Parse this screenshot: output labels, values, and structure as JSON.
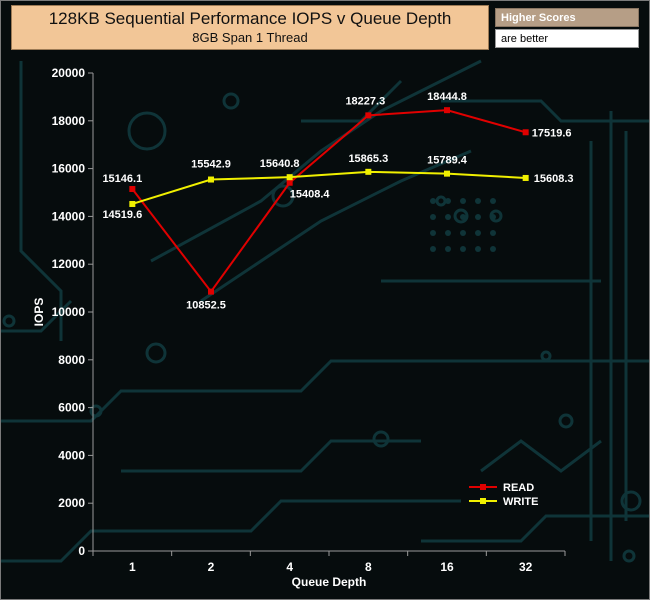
{
  "header": {
    "title": "128KB Sequential Performance IOPS v Queue Depth",
    "subtitle": "8GB Span 1 Thread"
  },
  "badge": {
    "title": "Higher Scores",
    "subtitle": "are better"
  },
  "colors": {
    "background": "#060c0d",
    "circuit": "#0f3438",
    "title_box": "#f2c697",
    "read": "#e00000",
    "write": "#f0f000"
  },
  "chart_data": {
    "type": "line",
    "title": "128KB Sequential Performance IOPS v Queue Depth",
    "subtitle": "8GB Span 1 Thread",
    "xlabel": "Queue Depth",
    "ylabel": "IOPS",
    "categories": [
      "1",
      "2",
      "4",
      "8",
      "16",
      "32"
    ],
    "ylim": [
      0,
      20000
    ],
    "yticks": [
      0,
      2000,
      4000,
      6000,
      8000,
      10000,
      12000,
      14000,
      16000,
      18000,
      20000
    ],
    "grid": false,
    "legend": "bottom-right",
    "series": [
      {
        "name": "READ",
        "color": "#e00000",
        "values": [
          15146.1,
          10852.5,
          15408.4,
          18227.3,
          18444.8,
          17519.6
        ]
      },
      {
        "name": "WRITE",
        "color": "#f0f000",
        "values": [
          14519.6,
          15542.9,
          15640.8,
          15865.3,
          15789.4,
          15608.3
        ]
      }
    ]
  }
}
